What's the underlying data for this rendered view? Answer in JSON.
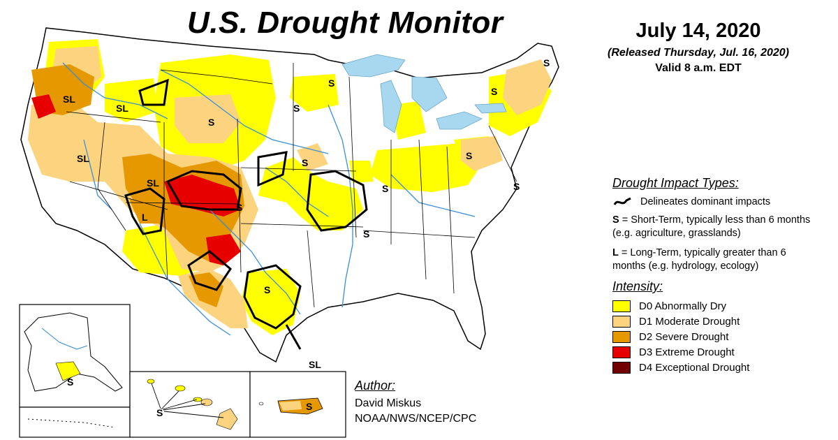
{
  "title": "U.S. Drought Monitor",
  "date": {
    "main": "July 14, 2020",
    "released": "(Released Thursday, Jul. 16, 2020)",
    "valid": "Valid 8 a.m. EDT"
  },
  "legend": {
    "impact_heading": "Drought Impact Types:",
    "delineates": "Delineates dominant impacts",
    "short_term_key": "S",
    "short_term_desc": " = Short-Term, typically less than 6 months (e.g. agriculture, grasslands)",
    "long_term_key": "L",
    "long_term_desc": " = Long-Term, typically greater than 6 months (e.g. hydrology, ecology)",
    "intensity_heading": "Intensity:",
    "categories": [
      {
        "label": "D0 Abnormally Dry",
        "color": "#ffff00"
      },
      {
        "label": "D1 Moderate Drought",
        "color": "#fcd37f"
      },
      {
        "label": "D2 Severe Drought",
        "color": "#e69800"
      },
      {
        "label": "D3 Extreme Drought",
        "color": "#e60000"
      },
      {
        "label": "D4 Exceptional Drought",
        "color": "#730000"
      }
    ]
  },
  "author": {
    "heading": "Author:",
    "name": "David Miskus",
    "org": "NOAA/NWS/NCEP/CPC"
  },
  "map_labels": {
    "oregon": "SL",
    "idaho": "SL",
    "nevada": "SL",
    "utah": "SL",
    "arizona": "L",
    "wyoming": "S",
    "montana_n": "S",
    "minnesota": "S",
    "wisconsin": "S",
    "kansas_w": "S",
    "texas_c": "S",
    "texas_se": "SL",
    "iowa": "S",
    "ohio_valley": "S",
    "arkansas": "S",
    "pennsylvania": "S",
    "new_england": "S",
    "maine": "S",
    "chesapeake": "S",
    "alaska": "S",
    "hawaii": "S",
    "puerto_rico": "S"
  },
  "colors": {
    "water": "#a8d8f0",
    "river": "#3a8fd6",
    "border": "#000000"
  }
}
